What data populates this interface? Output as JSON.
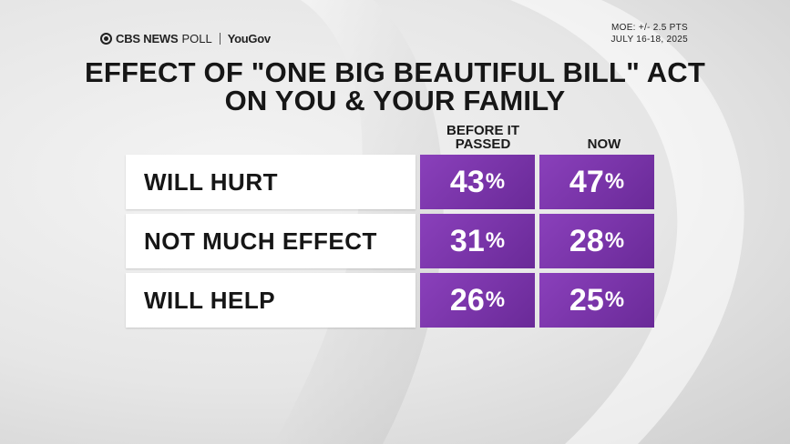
{
  "brand": {
    "cbs": "CBS NEWS",
    "poll": "POLL",
    "partner": "YouGov"
  },
  "meta": {
    "moe": "MOE: +/- 2.5 PTS",
    "dates": "JULY 16-18, 2025"
  },
  "title": {
    "line1": "EFFECT OF \"ONE BIG BEAUTIFUL BILL\" ACT",
    "line2": "ON YOU & YOUR FAMILY"
  },
  "colors": {
    "cell_purple": "#7a35ab",
    "label_bg": "#ffffff"
  },
  "chart_data": {
    "type": "table",
    "title": "EFFECT OF \"ONE BIG BEAUTIFUL BILL\" ACT ON YOU & YOUR FAMILY",
    "columns": [
      "BEFORE IT PASSED",
      "NOW"
    ],
    "column_header_lines": [
      [
        "BEFORE IT",
        "PASSED"
      ],
      [
        "NOW"
      ]
    ],
    "unit": "%",
    "rows": [
      {
        "label": "WILL HURT",
        "values": [
          43,
          47
        ]
      },
      {
        "label": "NOT MUCH EFFECT",
        "values": [
          31,
          28
        ]
      },
      {
        "label": "WILL HELP",
        "values": [
          26,
          25
        ]
      }
    ]
  }
}
